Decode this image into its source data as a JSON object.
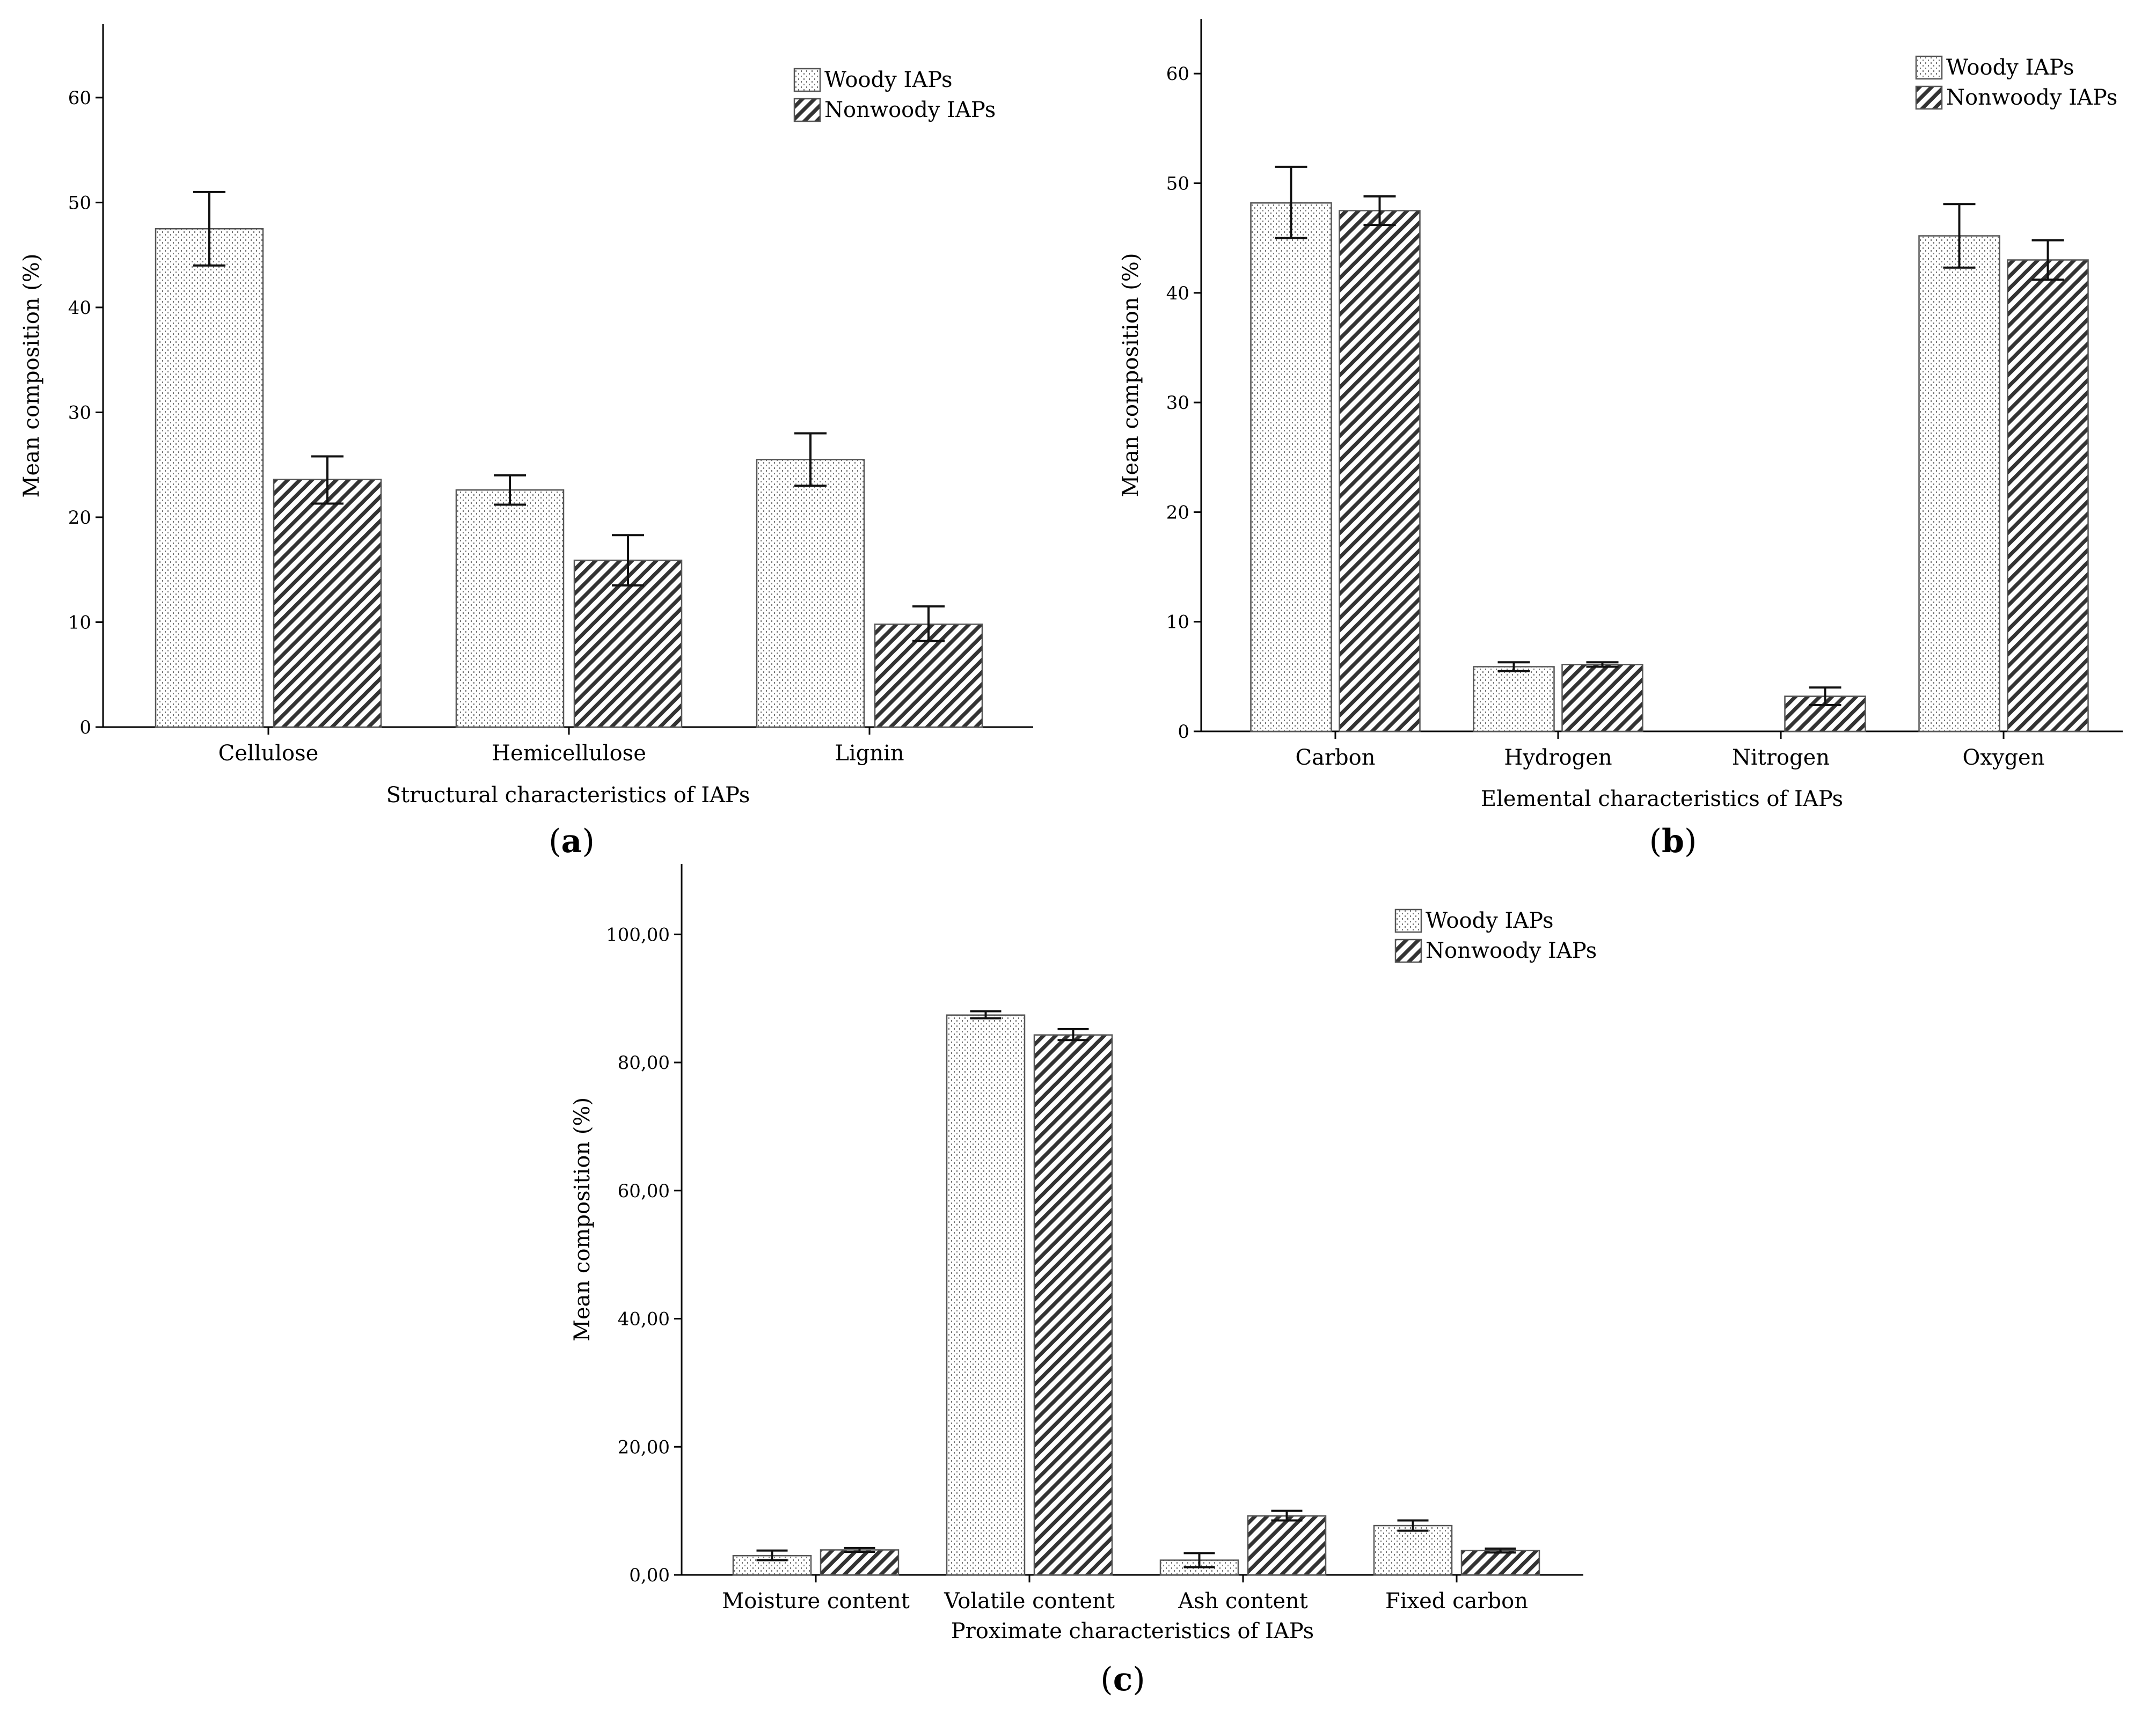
{
  "colors": {
    "axis": "#000000",
    "bar_edge": "#555555",
    "errorbar": "#111111",
    "woody_dots": "#777777",
    "nonwoody_hatch": "#333333"
  },
  "chart_data": [
    {
      "panel": "(a)",
      "panel_letter": "a",
      "type": "bar",
      "categories": [
        "Cellulose",
        "Hemicellulose",
        "Lignin"
      ],
      "series": [
        {
          "name": "Woody IAPs",
          "pattern": "dots",
          "values": [
            47.5,
            22.6,
            25.5
          ],
          "err_low": [
            44.0,
            21.2,
            23.0
          ],
          "err_high": [
            51.0,
            24.0,
            28.0
          ]
        },
        {
          "name": "Nonwoody IAPs",
          "pattern": "hatch",
          "values": [
            23.6,
            15.9,
            9.8
          ],
          "err_low": [
            21.3,
            13.5,
            8.2
          ],
          "err_high": [
            25.8,
            18.3,
            11.5
          ]
        }
      ],
      "yticks": [
        "0",
        "10",
        "20",
        "30",
        "40",
        "50",
        "60"
      ],
      "ytick_values": [
        0,
        10,
        20,
        30,
        40,
        50,
        60
      ],
      "ylim": [
        0,
        67
      ],
      "xlabel": "Structural characteristics of IAPs",
      "ylabel": "Mean composition (%)",
      "legend": [
        "Woody IAPs",
        "Nonwoody IAPs"
      ],
      "legend_position": "top-right"
    },
    {
      "panel": "(b)",
      "panel_letter": "b",
      "type": "bar",
      "categories": [
        "Carbon",
        "Hydrogen",
        "Nitrogen",
        "Oxygen"
      ],
      "series": [
        {
          "name": "Woody IAPs",
          "pattern": "dots",
          "values": [
            48.2,
            5.9,
            0.0,
            45.2
          ],
          "err_low": [
            45.0,
            5.5,
            0.0,
            42.3
          ],
          "err_high": [
            51.5,
            6.3,
            0.0,
            48.1
          ]
        },
        {
          "name": "Nonwoody IAPs",
          "pattern": "hatch",
          "values": [
            47.5,
            6.1,
            3.2,
            43.0
          ],
          "err_low": [
            46.2,
            5.9,
            2.4,
            41.2
          ],
          "err_high": [
            48.8,
            6.3,
            4.0,
            44.8
          ]
        }
      ],
      "yticks": [
        "0",
        "10",
        "20",
        "30",
        "40",
        "50",
        "60"
      ],
      "ytick_values": [
        0,
        10,
        20,
        30,
        40,
        50,
        60
      ],
      "ylim": [
        0,
        65
      ],
      "xlabel": "Elemental characteristics of IAPs",
      "ylabel": "Mean composition (%)",
      "legend": [
        "Woody IAPs",
        "Nonwoody IAPs"
      ],
      "legend_position": "top-right"
    },
    {
      "panel": "(c)",
      "panel_letter": "c",
      "type": "bar",
      "categories": [
        "Moisture content",
        "Volatile content",
        "Ash content",
        "Fixed carbon"
      ],
      "series": [
        {
          "name": "Woody IAPs",
          "pattern": "dots",
          "values": [
            3.0,
            87.4,
            2.3,
            7.7
          ],
          "err_low": [
            2.3,
            86.9,
            1.2,
            6.9
          ],
          "err_high": [
            3.8,
            88.0,
            3.4,
            8.5
          ]
        },
        {
          "name": "Nonwoody IAPs",
          "pattern": "hatch",
          "values": [
            3.9,
            84.3,
            9.2,
            3.8
          ],
          "err_low": [
            3.6,
            83.5,
            8.5,
            3.5
          ],
          "err_high": [
            4.2,
            85.2,
            10.0,
            4.1
          ]
        }
      ],
      "yticks": [
        "0,00",
        "20,00",
        "40,00",
        "60,00",
        "80,00",
        "100,00"
      ],
      "ytick_values": [
        0,
        20,
        40,
        60,
        80,
        100
      ],
      "ylim": [
        0,
        111
      ],
      "xlabel": "Proximate characteristics of IAPs",
      "ylabel": "Mean composition (%)",
      "legend": [
        "Woody IAPs",
        "Nonwoody IAPs"
      ],
      "legend_position": "top-right"
    }
  ]
}
